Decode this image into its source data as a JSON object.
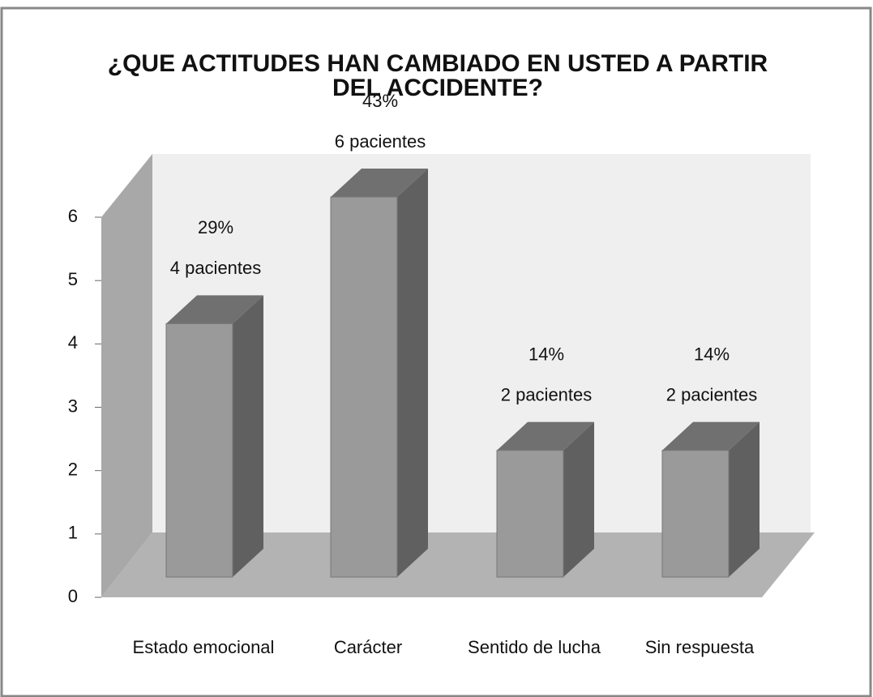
{
  "chart_data": {
    "type": "bar3d",
    "title": [
      "¿QUE ACTITUDES HAN CAMBIADO EN USTED A PARTIR",
      "DEL  ACCIDENTE?"
    ],
    "categories": [
      "Estado emocional",
      "Carácter",
      "Sentido de lucha",
      "Sin respuesta"
    ],
    "values": [
      4,
      6,
      2,
      2
    ],
    "value_labels": [
      "4 pacientes",
      "6 pacientes",
      "2 pacientes",
      "2 pacientes"
    ],
    "percentages": [
      29,
      43,
      14,
      14
    ],
    "percentage_labels": [
      "29%",
      "43%",
      "14%",
      "14%"
    ],
    "color": "#9a9a9a",
    "ylim": [
      0,
      6
    ],
    "yticks": [
      0,
      1,
      2,
      3,
      4,
      5,
      6
    ],
    "grid": false
  }
}
